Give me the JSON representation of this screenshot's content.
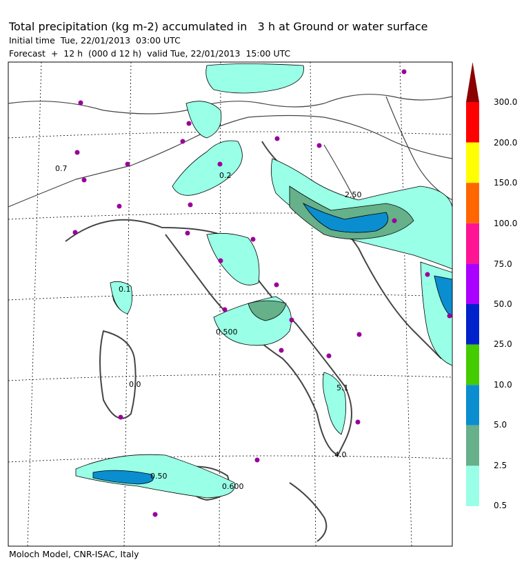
{
  "header": {
    "title": "Total precipitation (kg m-2) accumulated in   3 h at Ground or water surface",
    "initial_time": "Initial time  Tue, 22/01/2013  03:00 UTC",
    "forecast": "Forecast  +  12 h  (000 d 12 h)  valid Tue, 22/01/2013  15:00 UTC"
  },
  "footer": {
    "credit": "Moloch Model, CNR-ISAC, Italy"
  },
  "legend": {
    "levels": [
      "300.0",
      "200.0",
      "150.0",
      "100.0",
      "75.0",
      "50.0",
      "25.0",
      "10.0",
      "5.0",
      "2.5",
      "0.5"
    ],
    "colors": [
      "#8b0000",
      "#ff0000",
      "#ffff00",
      "#ff6600",
      "#ff1493",
      "#aa00ff",
      "#0022cc",
      "#44cc00",
      "#0a8ed0",
      "#66b08a",
      "#99ffe6"
    ]
  },
  "map": {
    "contour_labels": [
      "0.7",
      "0.2",
      "0.1",
      "0.500",
      "0.0",
      "5.1",
      "4.0",
      "0.50",
      "0.600",
      "2.50"
    ],
    "station_color": "#990099",
    "grid": "dotted"
  }
}
